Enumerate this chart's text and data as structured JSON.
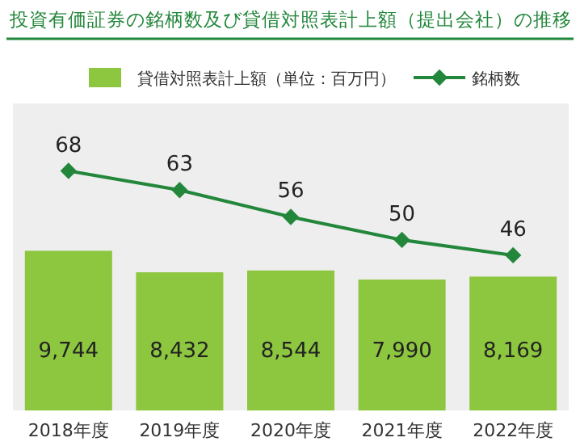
{
  "chart_data": {
    "type": "bar",
    "title": "投資有価証券の銘柄数及び貸借対照表計上額（提出会社）の推移",
    "categories": [
      "2018年度",
      "2019年度",
      "2020年度",
      "2021年度",
      "2022年度"
    ],
    "series": [
      {
        "name": "貸借対照表計上額（単位：百万円）",
        "color": "#8dc63f",
        "values": [
          9744,
          8432,
          8544,
          7990,
          8169
        ],
        "value_labels": [
          "9,744",
          "8,432",
          "8,544",
          "7,990",
          "8,169"
        ]
      },
      {
        "name": "銘柄数",
        "type": "line",
        "axis": "y2",
        "color": "#23873b",
        "values": [
          68,
          63,
          56,
          50,
          46
        ]
      }
    ],
    "data_labels": true,
    "legend": "top",
    "line_style": "solid",
    "tick_labels": "x"
  }
}
